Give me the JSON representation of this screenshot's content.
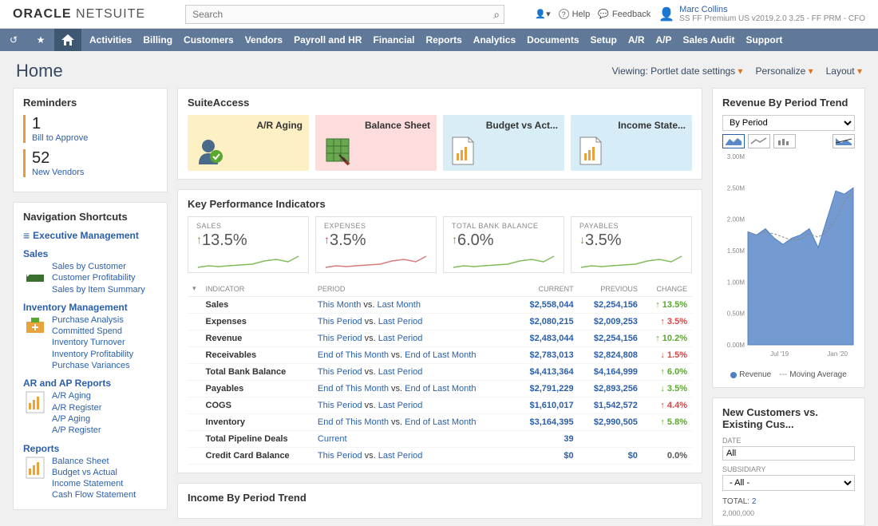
{
  "brand": {
    "strong": "ORACLE",
    "light": " NETSUITE"
  },
  "search": {
    "placeholder": "Search"
  },
  "top_right": {
    "help": "Help",
    "feedback": "Feedback",
    "user_name": "Marc Collins",
    "user_meta": "SS FF Premium US v2019.2.0 3.25 - FF PRM - CFO"
  },
  "nav": [
    "Activities",
    "Billing",
    "Customers",
    "Vendors",
    "Payroll and HR",
    "Financial",
    "Reports",
    "Analytics",
    "Documents",
    "Setup",
    "A/R",
    "A/P",
    "Sales Audit",
    "Support"
  ],
  "page_title": "Home",
  "page_head_right": [
    {
      "t": "Viewing: Portlet date settings",
      "dd": true
    },
    {
      "t": "Personalize",
      "dd": true
    },
    {
      "t": "Layout",
      "dd": true
    }
  ],
  "reminders": {
    "title": "Reminders",
    "items": [
      {
        "num": "1",
        "label": "Bill to Approve"
      },
      {
        "num": "52",
        "label": "New Vendors"
      }
    ]
  },
  "nav_shortcuts": {
    "title": "Navigation Shortcuts",
    "exec": "Executive Management",
    "groups": [
      {
        "cat": "Sales",
        "icon_color": "#5aa72e",
        "links": [
          "Sales by Customer",
          "Customer Profitability",
          "Sales by Item Summary"
        ]
      },
      {
        "cat": "Inventory Management",
        "icon_color": "#e8a33d",
        "links": [
          "Purchase Analysis",
          "Committed Spend",
          "Inventory Turnover",
          "Inventory Profitability",
          "Purchase Variances"
        ]
      },
      {
        "cat": "AR and AP Reports",
        "icon_color": "#e8a33d",
        "links": [
          "A/R Aging",
          "A/R Register",
          "A/P Aging",
          "A/P Register"
        ]
      },
      {
        "cat": "Reports",
        "icon_color": "#e8a33d",
        "links": [
          "Balance Sheet",
          "Budget vs Actual",
          "Income Statement",
          "Cash Flow Statement"
        ]
      }
    ]
  },
  "suite": {
    "title": "SuiteAccess",
    "tiles": [
      {
        "title": "A/R Aging",
        "bg": "#fdf0c4"
      },
      {
        "title": "Balance Sheet",
        "bg": "#fddcdc"
      },
      {
        "title": "Budget vs Act...",
        "bg": "#d9edf6"
      },
      {
        "title": "Income State...",
        "bg": "#d6edf7"
      }
    ]
  },
  "kpi": {
    "title": "Key Performance Indicators",
    "boxes": [
      {
        "label": "SALES",
        "value": "13.5%",
        "dir": "up",
        "color": "#5aa72e",
        "spark_color": "#7fbf5a"
      },
      {
        "label": "EXPENSES",
        "value": "3.5%",
        "dir": "up",
        "color": "#d64545",
        "spark_color": "#d97b7b"
      },
      {
        "label": "TOTAL BANK BALANCE",
        "value": "6.0%",
        "dir": "up",
        "color": "#5aa72e",
        "spark_color": "#7fbf5a"
      },
      {
        "label": "PAYABLES",
        "value": "3.5%",
        "dir": "down",
        "color": "#5aa72e",
        "spark_color": "#7fbf5a"
      }
    ],
    "table": {
      "headers": [
        "",
        "Indicator",
        "Period",
        "Current",
        "Previous",
        "Change"
      ],
      "rows": [
        {
          "ind": "Sales",
          "per": [
            "This Month",
            " vs. ",
            "Last Month"
          ],
          "cur": "$2,558,044",
          "prev": "$2,254,156",
          "chg": "13.5%",
          "dir": "up",
          "cc": "#5aa72e"
        },
        {
          "ind": "Expenses",
          "per": [
            "This Period",
            " vs. ",
            "Last Period"
          ],
          "cur": "$2,080,215",
          "prev": "$2,009,253",
          "chg": "3.5%",
          "dir": "up",
          "cc": "#d64545"
        },
        {
          "ind": "Revenue",
          "per": [
            "This Period",
            " vs. ",
            "Last Period"
          ],
          "cur": "$2,483,044",
          "prev": "$2,254,156",
          "chg": "10.2%",
          "dir": "up",
          "cc": "#5aa72e"
        },
        {
          "ind": "Receivables",
          "per": [
            "End of This Month",
            " vs. ",
            "End of Last Month"
          ],
          "cur": "$2,783,013",
          "prev": "$2,824,808",
          "chg": "1.5%",
          "dir": "down",
          "cc": "#d64545"
        },
        {
          "ind": "Total Bank Balance",
          "per": [
            "This Period",
            " vs. ",
            "Last Period"
          ],
          "cur": "$4,413,364",
          "prev": "$4,164,999",
          "chg": "6.0%",
          "dir": "up",
          "cc": "#5aa72e"
        },
        {
          "ind": "Payables",
          "per": [
            "End of This Month",
            " vs. ",
            "End of Last Month"
          ],
          "cur": "$2,791,229",
          "prev": "$2,893,256",
          "chg": "3.5%",
          "dir": "down",
          "cc": "#5aa72e"
        },
        {
          "ind": "COGS",
          "per": [
            "This Period",
            " vs. ",
            "Last Period"
          ],
          "cur": "$1,610,017",
          "prev": "$1,542,572",
          "chg": "4.4%",
          "dir": "up",
          "cc": "#d64545"
        },
        {
          "ind": "Inventory",
          "per": [
            "End of This Month",
            " vs. ",
            "End of Last Month"
          ],
          "cur": "$3,164,395",
          "prev": "$2,990,505",
          "chg": "5.8%",
          "dir": "up",
          "cc": "#5aa72e"
        },
        {
          "ind": "Total Pipeline Deals",
          "per": [
            "Current",
            "",
            ""
          ],
          "cur": "39",
          "prev": "",
          "chg": "",
          "dir": "",
          "cc": ""
        },
        {
          "ind": "Credit Card Balance",
          "per": [
            "This Period",
            " vs. ",
            "Last Period"
          ],
          "cur": "$0",
          "prev": "$0",
          "chg": "0.0%",
          "dir": "",
          "cc": "#555"
        }
      ]
    }
  },
  "income_trend_title": "Income By Period Trend",
  "revenue": {
    "title": "Revenue By Period Trend",
    "select": "By Period",
    "chart": {
      "ylabels": [
        "3.00M",
        "2.50M",
        "2.00M",
        "1.50M",
        "1.00M",
        "0.50M",
        "0.00M"
      ],
      "xlabels": [
        "Jul '19",
        "Jan '20"
      ],
      "area_color": "#4f7fc4",
      "area_fill": "#5a88c9",
      "line_color": "#888",
      "points": [
        1.8,
        1.75,
        1.85,
        1.7,
        1.6,
        1.7,
        1.75,
        1.85,
        1.55,
        2.0,
        2.45,
        2.4,
        2.5
      ],
      "ymax": 3.0
    },
    "legend": [
      "Revenue",
      "Moving Average"
    ]
  },
  "new_cust": {
    "title": "New Customers vs. Existing Cus...",
    "date_label": "DATE",
    "date_val": "All",
    "sub_label": "SUBSIDIARY",
    "sub_val": "- All -",
    "total_label": "TOTAL:",
    "total_val": "2",
    "axis": "2,000,000"
  }
}
